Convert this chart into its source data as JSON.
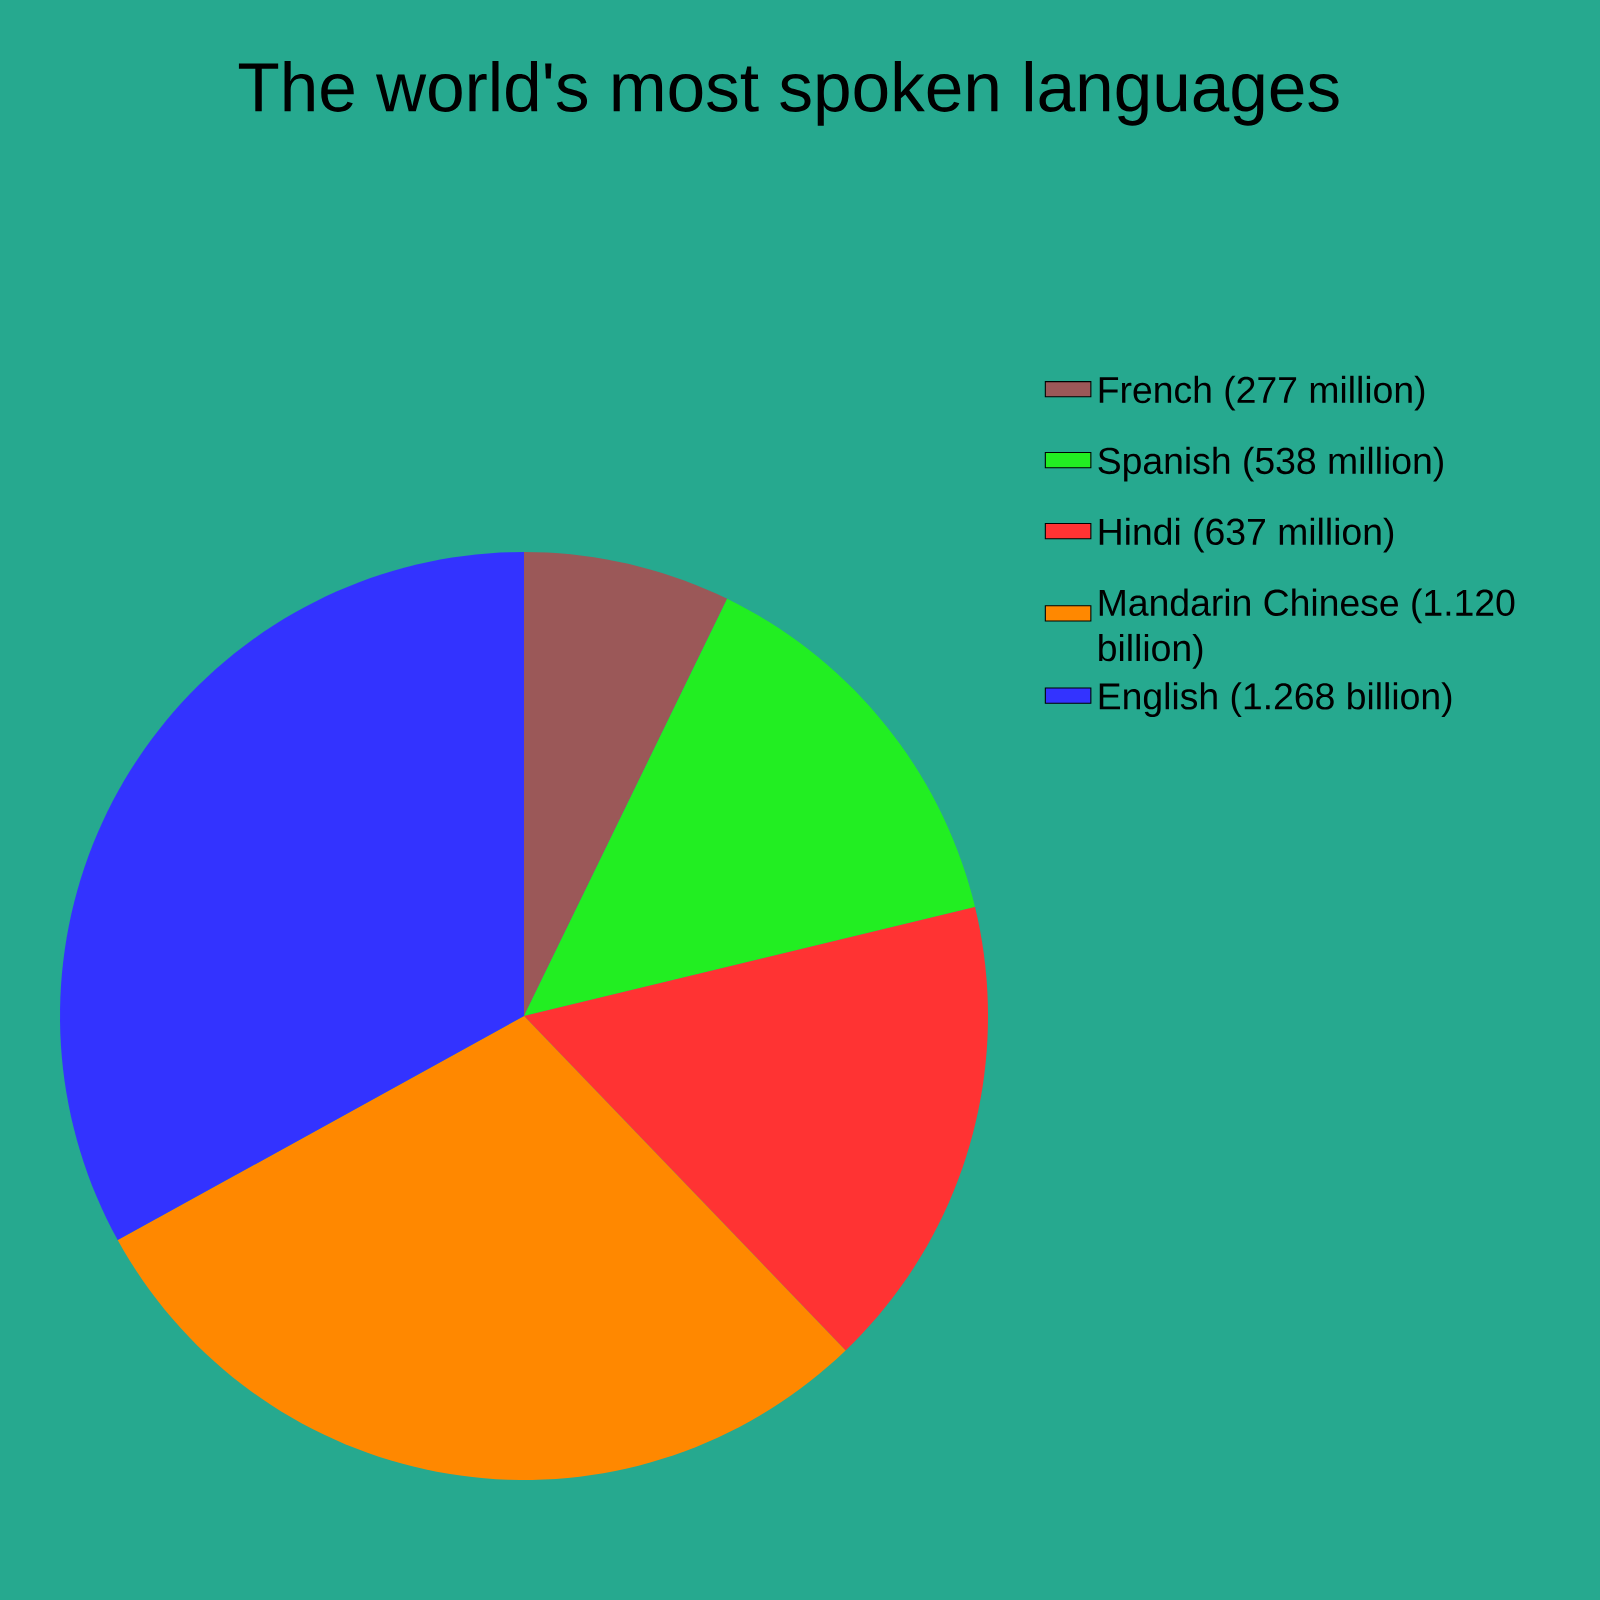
{
  "chart_data": {
    "type": "pie",
    "title": "The world's most spoken languages",
    "categories": [
      "French (277 million)",
      "Spanish (538 million)",
      "Hindi (637 million)",
      "Mandarin Chinese (1.120 billion)",
      "English (1.268 billion)"
    ],
    "values": [
      277,
      538,
      637,
      1120,
      1268
    ],
    "colors": [
      "#9b5858",
      "#22ee22",
      "#ff3333",
      "#ff8800",
      "#3333ff"
    ],
    "legend": "right"
  }
}
